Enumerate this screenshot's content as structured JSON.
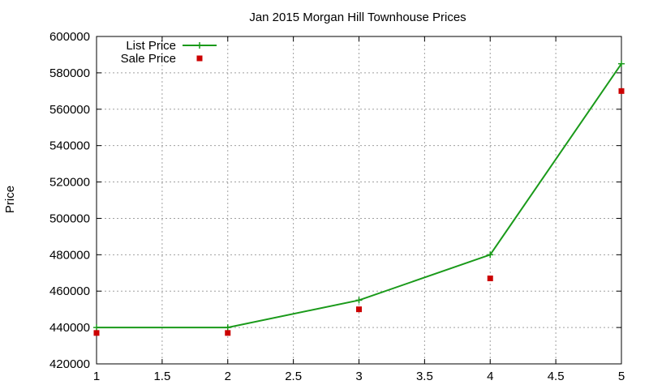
{
  "chart_data": {
    "type": "line",
    "title": "Jan 2015 Morgan Hill Townhouse Prices",
    "xlabel": "",
    "ylabel": "Price",
    "xlim": [
      1,
      5
    ],
    "ylim": [
      420000,
      600000
    ],
    "x_ticks": [
      "1",
      "1.5",
      "2",
      "2.5",
      "3",
      "3.5",
      "4",
      "4.5",
      "5"
    ],
    "y_ticks": [
      "420000",
      "440000",
      "460000",
      "480000",
      "500000",
      "520000",
      "540000",
      "560000",
      "580000",
      "600000"
    ],
    "grid": true,
    "legend_position": "top-left",
    "series": [
      {
        "name": "List Price",
        "style": "lines+points",
        "marker": "plus",
        "color": "#1a9a1a",
        "x": [
          1,
          2,
          3,
          4,
          5
        ],
        "y": [
          440000,
          440000,
          455000,
          480000,
          585000
        ]
      },
      {
        "name": "Sale Price",
        "style": "points",
        "marker": "square",
        "color": "#cc0000",
        "x": [
          1,
          2,
          3,
          4,
          5
        ],
        "y": [
          437000,
          437000,
          450000,
          467000,
          570000
        ]
      }
    ]
  }
}
